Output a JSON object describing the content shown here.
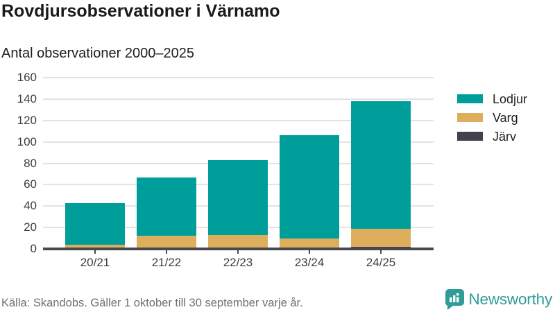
{
  "header": {
    "title": "Rovdjursobservationer i Värnamo",
    "subtitle": "Antal observationer 2000–2025"
  },
  "chart_data": {
    "type": "bar",
    "stacked": true,
    "categories": [
      "20/21",
      "21/22",
      "22/23",
      "23/24",
      "24/25"
    ],
    "series": [
      {
        "name": "Lodjur",
        "color": "#009e9a",
        "values": [
          39,
          55,
          70,
          96,
          119
        ]
      },
      {
        "name": "Varg",
        "color": "#ddae5c",
        "values": [
          3,
          12,
          13,
          10,
          17
        ]
      },
      {
        "name": "Järv",
        "color": "#45404e",
        "values": [
          1,
          0,
          0,
          0,
          2
        ]
      }
    ],
    "totals": [
      43,
      67,
      83,
      106,
      138
    ],
    "title": "Rovdjursobservationer i Värnamo",
    "subtitle": "Antal observationer 2000–2025",
    "xlabel": "",
    "ylabel": "",
    "ylim": [
      0,
      160
    ],
    "yticks": [
      0,
      20,
      40,
      60,
      80,
      100,
      120,
      140,
      160
    ],
    "grid": true,
    "legend_position": "right",
    "stack_order_bottom_to_top": [
      "Järv",
      "Varg",
      "Lodjur"
    ]
  },
  "footer": {
    "source": "Källa: Skandobs. Gäller 1 oktober till 30 september varje år."
  },
  "brand": {
    "name": "Newsworthy",
    "color": "#2f9c98",
    "icon": "newsworthy-bubble-chart-icon"
  }
}
